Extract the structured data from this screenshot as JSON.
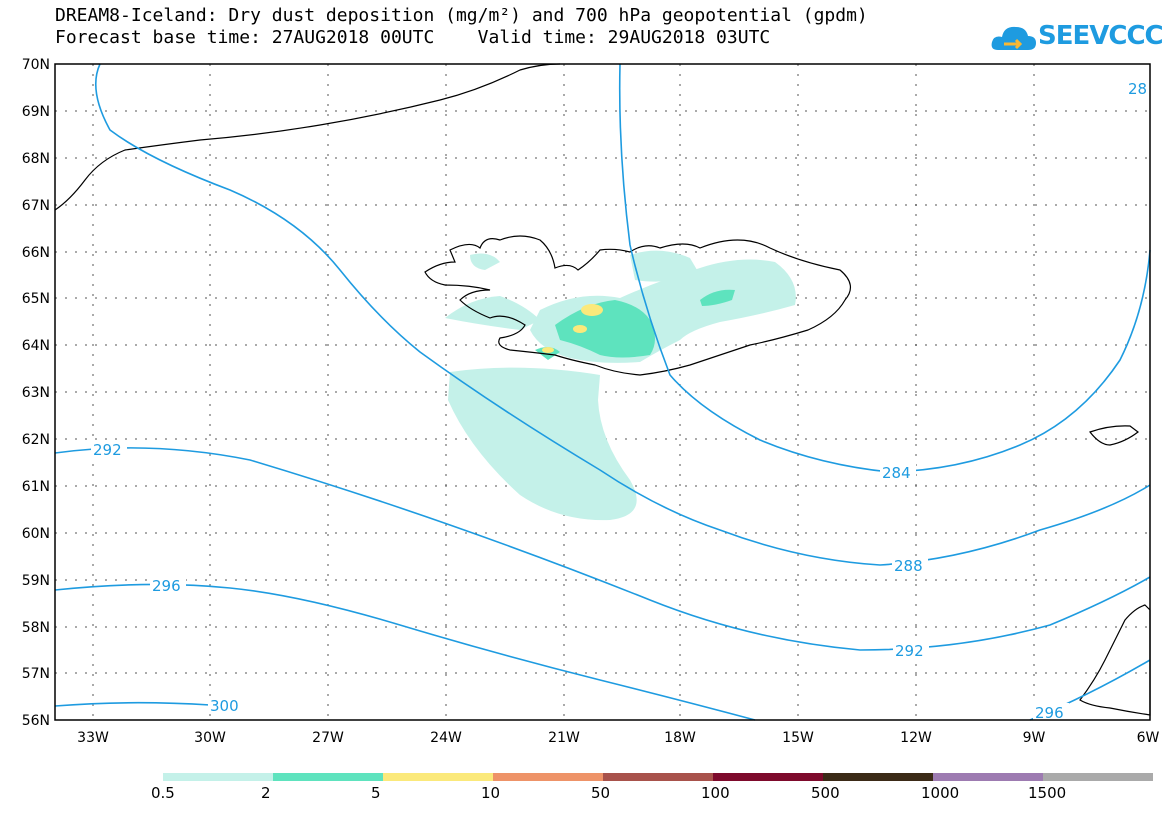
{
  "title_line1": "DREAM8-Iceland: Dry dust deposition (mg/m²) and 700 hPa geopotential (gpdm)",
  "title_line2": "Forecast base time: 27AUG2018 00UTC    Valid time: 29AUG2018 03UTC",
  "logo_text": "SEEVCCC",
  "lat_labels": [
    "70N",
    "69N",
    "68N",
    "67N",
    "66N",
    "65N",
    "64N",
    "63N",
    "62N",
    "61N",
    "60N",
    "59N",
    "58N",
    "57N",
    "56N"
  ],
  "lon_labels": [
    "33W",
    "30W",
    "27W",
    "24W",
    "21W",
    "18W",
    "15W",
    "12W",
    "9W",
    "6W"
  ],
  "contour_labels": [
    "292",
    "296",
    "300",
    "284",
    "288",
    "292",
    "296",
    "28"
  ],
  "colorbar": {
    "labels": [
      "0.5",
      "2",
      "5",
      "10",
      "50",
      "100",
      "500",
      "1000",
      "1500"
    ],
    "colors": [
      "#c4f1e9",
      "#5ee3be",
      "#fbe97b",
      "#ee9368",
      "#a8524b",
      "#7e0a2c",
      "#3b2a17",
      "#9d7bb1",
      "#aaaaaa"
    ]
  },
  "colors": {
    "contour": "#1e9be0",
    "coast": "#000000",
    "grid": "#555555"
  }
}
